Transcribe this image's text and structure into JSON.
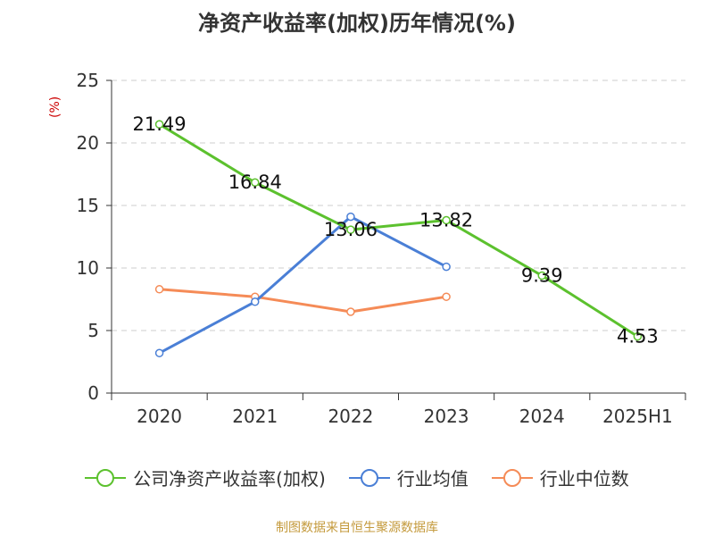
{
  "chart_data": {
    "type": "line",
    "title": "净资产收益率(加权)历年情况(%)",
    "ylabel": "(%)",
    "categories": [
      "2020",
      "2021",
      "2022",
      "2023",
      "2024",
      "2025H1"
    ],
    "ylim": [
      0,
      25
    ],
    "yticks": [
      0,
      5,
      10,
      15,
      20,
      25
    ],
    "grid": true,
    "legend_position": "bottom",
    "series": [
      {
        "name": "公司净资产收益率(加权)",
        "color": "#5cc12e",
        "values": [
          21.49,
          16.84,
          13.06,
          13.82,
          9.39,
          4.53
        ],
        "labels": [
          "21.49",
          "16.84",
          "13.06",
          "13.82",
          "9.39",
          "4.53"
        ]
      },
      {
        "name": "行业均值",
        "color": "#4a7fd6",
        "values": [
          3.2,
          7.3,
          14.1,
          10.1,
          null,
          null
        ]
      },
      {
        "name": "行业中位数",
        "color": "#f58b57",
        "values": [
          8.3,
          7.7,
          6.5,
          7.7,
          null,
          null
        ]
      }
    ]
  },
  "source": "制图数据来自恒生聚源数据库"
}
